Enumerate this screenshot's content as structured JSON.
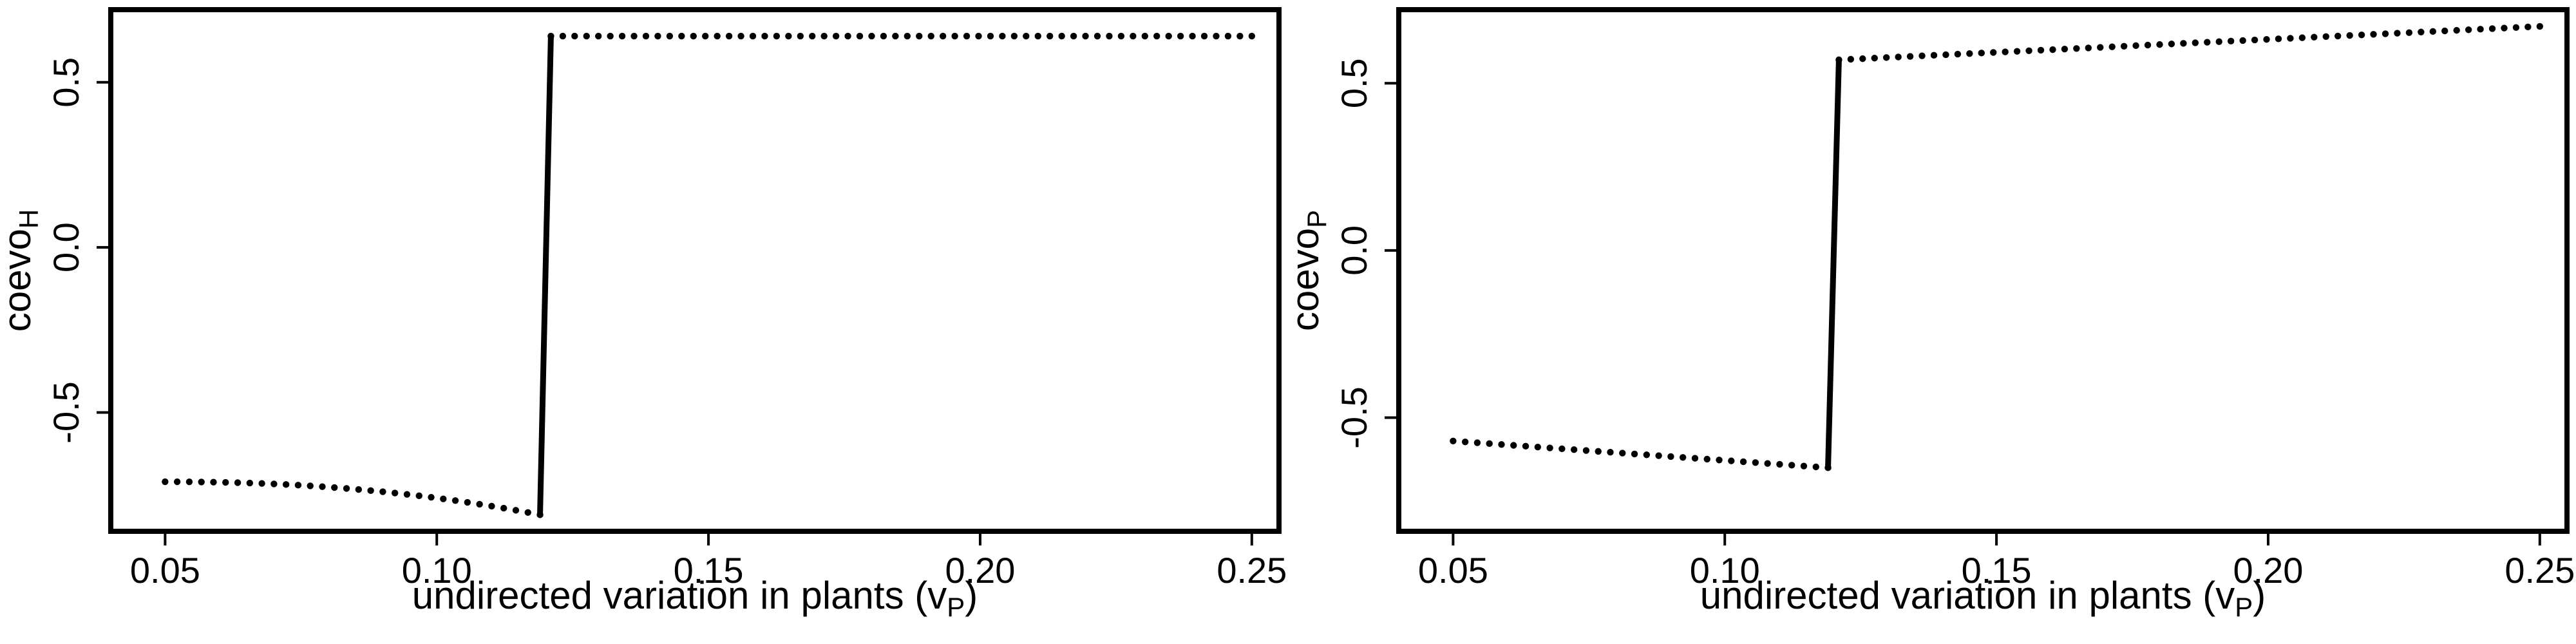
{
  "chart_data": [
    {
      "type": "line",
      "xlabel": "undirected variation in plants (v",
      "xlabel_sub": "P",
      "xlabel_close": ")",
      "ylabel": "coevo",
      "ylabel_sub": "H",
      "xlim": [
        0.04,
        0.255
      ],
      "ylim": [
        -0.86,
        0.72
      ],
      "xticks": [
        0.05,
        0.1,
        0.15,
        0.2,
        0.25
      ],
      "xtick_labels": [
        "0.05",
        "0.10",
        "0.15",
        "0.20",
        "0.25"
      ],
      "yticks": [
        -0.5,
        0.0,
        0.5
      ],
      "ytick_labels": [
        "-0.5",
        "0.0",
        "0.5"
      ],
      "segments": [
        {
          "style": "dotted",
          "x_start": 0.05,
          "x_end": 0.119,
          "y_start": -0.71,
          "y_end": -0.81,
          "curvature": 2.2
        },
        {
          "style": "solid",
          "points": [
            [
              0.119,
              -0.81
            ],
            [
              0.121,
              0.64
            ]
          ]
        },
        {
          "style": "dotted",
          "x_start": 0.121,
          "x_end": 0.25,
          "y_start": 0.64,
          "y_end": 0.64,
          "curvature": 1
        }
      ],
      "grid": false,
      "legend": "none"
    },
    {
      "type": "line",
      "xlabel": "undirected variation in plants (v",
      "xlabel_sub": "P",
      "xlabel_close": ")",
      "ylabel": "coevo",
      "ylabel_sub": "P",
      "xlim": [
        0.04,
        0.255
      ],
      "ylim": [
        -0.84,
        0.72
      ],
      "xticks": [
        0.05,
        0.1,
        0.15,
        0.2,
        0.25
      ],
      "xtick_labels": [
        "0.05",
        "0.10",
        "0.15",
        "0.20",
        "0.25"
      ],
      "yticks": [
        -0.5,
        0.0,
        0.5
      ],
      "ytick_labels": [
        "-0.5",
        "0.0",
        "0.5"
      ],
      "segments": [
        {
          "style": "dotted",
          "x_start": 0.05,
          "x_end": 0.119,
          "y_start": -0.57,
          "y_end": -0.65,
          "curvature": 1
        },
        {
          "style": "solid",
          "points": [
            [
              0.119,
              -0.65
            ],
            [
              0.121,
              0.57
            ]
          ]
        },
        {
          "style": "dotted",
          "x_start": 0.121,
          "x_end": 0.25,
          "y_start": 0.57,
          "y_end": 0.67,
          "curvature": 1
        }
      ],
      "grid": false,
      "legend": "none"
    }
  ]
}
